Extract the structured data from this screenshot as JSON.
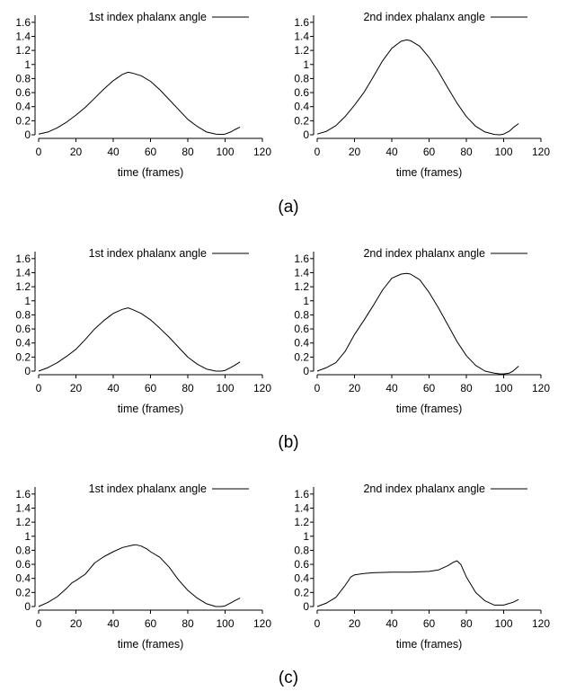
{
  "captions": [
    "(a)",
    "(b)",
    "(c)"
  ],
  "chart_data": [
    {
      "type": "line",
      "row": 0,
      "col": 0,
      "xlabel": "time (frames)",
      "ylabel": "",
      "xlim": [
        0,
        120
      ],
      "ylim": [
        0,
        1.7
      ],
      "xticks": [
        "0",
        "20",
        "40",
        "60",
        "80",
        "100",
        "120"
      ],
      "yticks": [
        "0",
        "0.2",
        "0.4",
        "0.6",
        "0.8",
        "1",
        "1.2",
        "1.4",
        "1.6"
      ],
      "legend_position": "top-right",
      "grid": false,
      "series": [
        {
          "name": "1st index phalanx angle",
          "x": [
            0,
            5,
            10,
            15,
            20,
            25,
            30,
            35,
            40,
            45,
            48,
            50,
            55,
            60,
            65,
            70,
            75,
            80,
            85,
            90,
            95,
            98,
            100,
            103,
            105,
            108
          ],
          "y": [
            0.01,
            0.04,
            0.1,
            0.18,
            0.28,
            0.39,
            0.52,
            0.65,
            0.77,
            0.86,
            0.89,
            0.88,
            0.84,
            0.76,
            0.64,
            0.5,
            0.36,
            0.22,
            0.12,
            0.04,
            0.01,
            0.005,
            0.01,
            0.04,
            0.07,
            0.11
          ]
        }
      ]
    },
    {
      "type": "line",
      "row": 0,
      "col": 1,
      "xlabel": "time (frames)",
      "ylabel": "",
      "xlim": [
        0,
        120
      ],
      "ylim": [
        0,
        1.7
      ],
      "xticks": [
        "0",
        "20",
        "40",
        "60",
        "80",
        "100",
        "120"
      ],
      "yticks": [
        "0",
        "0.2",
        "0.4",
        "0.6",
        "0.8",
        "1",
        "1.2",
        "1.4",
        "1.6"
      ],
      "legend_position": "top-right",
      "grid": false,
      "series": [
        {
          "name": "2nd index phalanx angle",
          "x": [
            0,
            5,
            10,
            15,
            20,
            25,
            30,
            35,
            40,
            45,
            48,
            50,
            55,
            60,
            65,
            70,
            75,
            80,
            85,
            90,
            95,
            98,
            100,
            103,
            105,
            108
          ],
          "y": [
            0.01,
            0.05,
            0.13,
            0.26,
            0.42,
            0.6,
            0.82,
            1.05,
            1.23,
            1.33,
            1.35,
            1.34,
            1.26,
            1.1,
            0.9,
            0.67,
            0.45,
            0.26,
            0.12,
            0.04,
            0.005,
            0.0,
            0.01,
            0.05,
            0.1,
            0.16
          ]
        }
      ]
    },
    {
      "type": "line",
      "row": 1,
      "col": 0,
      "xlabel": "time (frames)",
      "ylabel": "",
      "xlim": [
        0,
        120
      ],
      "ylim": [
        0,
        1.7
      ],
      "xticks": [
        "0",
        "20",
        "40",
        "60",
        "80",
        "100",
        "120"
      ],
      "yticks": [
        "0",
        "0.2",
        "0.4",
        "0.6",
        "0.8",
        "1",
        "1.2",
        "1.4",
        "1.6"
      ],
      "legend_position": "top-right",
      "grid": false,
      "series": [
        {
          "name": "1st index phalanx angle",
          "x": [
            0,
            5,
            10,
            15,
            20,
            25,
            30,
            35,
            40,
            45,
            48,
            50,
            55,
            60,
            65,
            70,
            75,
            80,
            85,
            90,
            95,
            98,
            100,
            103,
            105,
            108
          ],
          "y": [
            0.0,
            0.05,
            0.12,
            0.21,
            0.31,
            0.45,
            0.6,
            0.72,
            0.82,
            0.88,
            0.9,
            0.88,
            0.82,
            0.73,
            0.61,
            0.48,
            0.34,
            0.2,
            0.1,
            0.03,
            0.0,
            0.0,
            0.01,
            0.05,
            0.08,
            0.13
          ]
        }
      ]
    },
    {
      "type": "line",
      "row": 1,
      "col": 1,
      "xlabel": "time (frames)",
      "ylabel": "",
      "xlim": [
        0,
        120
      ],
      "ylim": [
        0,
        1.7
      ],
      "xticks": [
        "0",
        "20",
        "40",
        "60",
        "80",
        "100",
        "120"
      ],
      "yticks": [
        "0",
        "0.2",
        "0.4",
        "0.6",
        "0.8",
        "1",
        "1.2",
        "1.4",
        "1.6"
      ],
      "legend_position": "top-right",
      "grid": false,
      "series": [
        {
          "name": "2nd index phalanx angle",
          "x": [
            0,
            5,
            10,
            15,
            20,
            25,
            30,
            35,
            40,
            45,
            48,
            50,
            55,
            60,
            65,
            70,
            75,
            80,
            85,
            90,
            95,
            98,
            100,
            103,
            105,
            108
          ],
          "y": [
            0.0,
            0.05,
            0.12,
            0.28,
            0.52,
            0.72,
            0.93,
            1.15,
            1.32,
            1.38,
            1.39,
            1.38,
            1.3,
            1.12,
            0.9,
            0.66,
            0.42,
            0.22,
            0.08,
            0.0,
            -0.03,
            -0.04,
            -0.04,
            -0.03,
            0.0,
            0.07
          ]
        }
      ]
    },
    {
      "type": "line",
      "row": 2,
      "col": 0,
      "xlabel": "time (frames)",
      "ylabel": "",
      "xlim": [
        0,
        120
      ],
      "ylim": [
        0,
        1.7
      ],
      "xticks": [
        "0",
        "20",
        "40",
        "60",
        "80",
        "100",
        "120"
      ],
      "yticks": [
        "0",
        "0.2",
        "0.4",
        "0.6",
        "0.8",
        "1",
        "1.2",
        "1.4",
        "1.6"
      ],
      "legend_position": "top-right",
      "grid": false,
      "series": [
        {
          "name": "1st index phalanx angle",
          "x": [
            0,
            5,
            10,
            15,
            18,
            20,
            25,
            30,
            35,
            40,
            45,
            50,
            52,
            55,
            58,
            60,
            65,
            70,
            75,
            80,
            85,
            90,
            95,
            98,
            100,
            103,
            105,
            108
          ],
          "y": [
            0.0,
            0.06,
            0.14,
            0.26,
            0.34,
            0.37,
            0.46,
            0.62,
            0.71,
            0.78,
            0.84,
            0.87,
            0.88,
            0.86,
            0.82,
            0.78,
            0.7,
            0.56,
            0.38,
            0.23,
            0.12,
            0.04,
            0.0,
            0.0,
            0.01,
            0.05,
            0.08,
            0.12
          ]
        }
      ]
    },
    {
      "type": "line",
      "row": 2,
      "col": 1,
      "xlabel": "time (frames)",
      "ylabel": "",
      "xlim": [
        0,
        120
      ],
      "ylim": [
        0,
        1.7
      ],
      "xticks": [
        "0",
        "20",
        "40",
        "60",
        "80",
        "100",
        "120"
      ],
      "yticks": [
        "0",
        "0.2",
        "0.4",
        "0.6",
        "0.8",
        "1",
        "1.2",
        "1.4",
        "1.6"
      ],
      "legend_position": "top-right",
      "grid": false,
      "series": [
        {
          "name": "2nd index phalanx angle",
          "x": [
            0,
            5,
            10,
            15,
            18,
            20,
            25,
            30,
            40,
            50,
            60,
            65,
            70,
            73,
            75,
            77,
            80,
            85,
            90,
            95,
            100,
            105,
            108
          ],
          "y": [
            0.0,
            0.05,
            0.13,
            0.3,
            0.42,
            0.45,
            0.47,
            0.48,
            0.49,
            0.49,
            0.5,
            0.52,
            0.58,
            0.63,
            0.65,
            0.6,
            0.42,
            0.2,
            0.08,
            0.02,
            0.02,
            0.06,
            0.1
          ]
        }
      ]
    }
  ]
}
